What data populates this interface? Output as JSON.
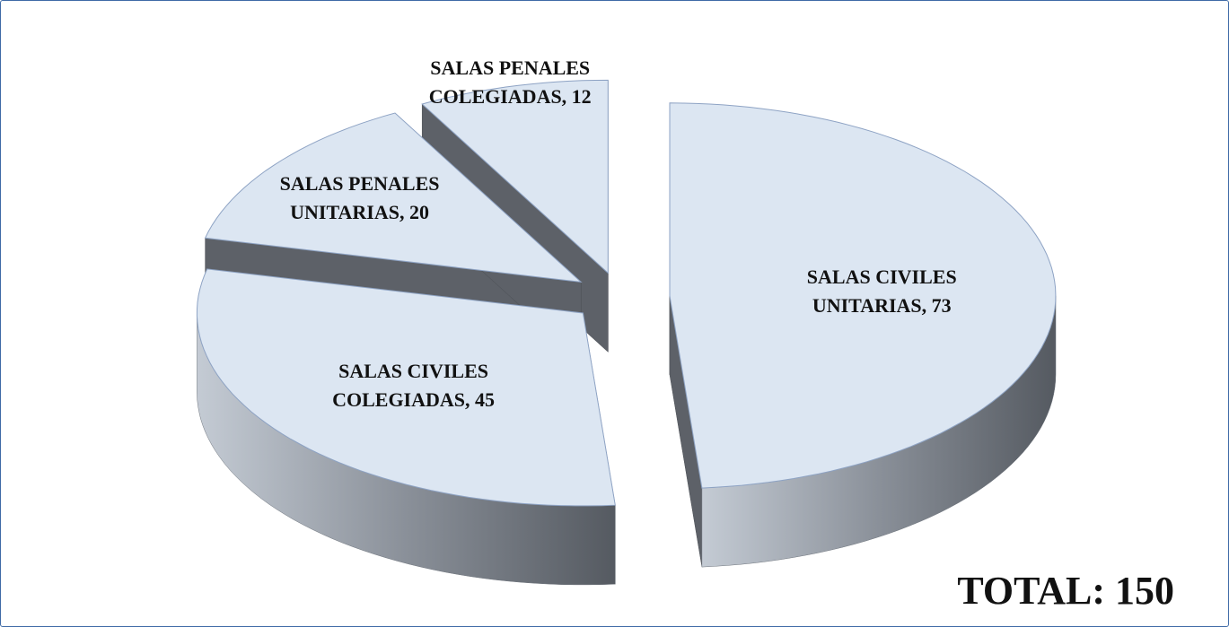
{
  "chart_data": {
    "type": "pie3d",
    "values": [
      73,
      45,
      20,
      12
    ],
    "value_labels": [
      "SALAS CIVILES UNITARIAS, 73",
      "SALAS CIVILES COLEGIADAS, 45",
      "SALAS PENALES UNITARIAS, 20",
      "SALAS PENALES COLEGIADAS, 12"
    ],
    "color": "#dce6f2",
    "annotation": "TOTAL: 150"
  }
}
